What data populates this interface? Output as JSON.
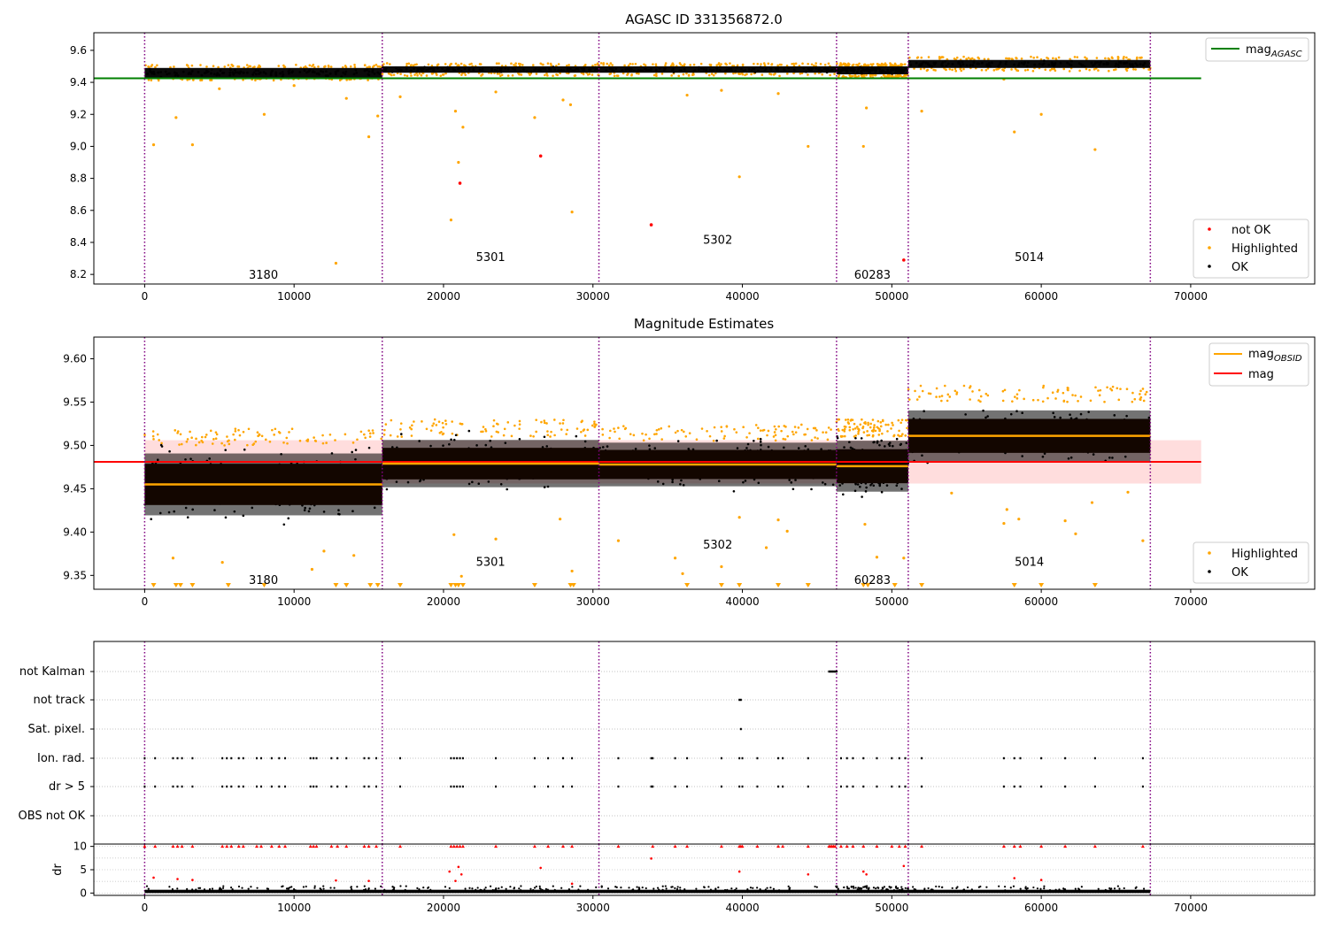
{
  "chart_data": [
    {
      "type": "scatter",
      "title": "AGASC ID 331356872.0",
      "xlim": [
        -3400,
        78300
      ],
      "ylim": [
        8.14,
        9.71
      ],
      "x_ticks": [
        0,
        10000,
        20000,
        30000,
        40000,
        50000,
        60000,
        70000
      ],
      "y_ticks": [
        8.2,
        8.4,
        8.6,
        8.8,
        9.0,
        9.2,
        9.4,
        9.6
      ],
      "y_tick_labels": [
        "8.2",
        "8.4",
        "8.6",
        "8.8",
        "9.0",
        "9.2",
        "9.4",
        "9.6"
      ],
      "obs_boundaries": [
        0,
        15900,
        30400,
        46300,
        51100,
        67300
      ],
      "obsids": [
        {
          "label": "3180",
          "x": 7950,
          "y": 8.2
        },
        {
          "label": "5301",
          "x": 23150,
          "y": 8.31
        },
        {
          "label": "5302",
          "x": 38350,
          "y": 8.42
        },
        {
          "label": "60283",
          "x": 48700,
          "y": 8.2
        },
        {
          "label": "5014",
          "x": 59200,
          "y": 8.31
        }
      ],
      "series_ok_bands": [
        {
          "x0": 0,
          "x1": 15900,
          "y0": 9.43,
          "y1": 9.49
        },
        {
          "x0": 15900,
          "x1": 30400,
          "y0": 9.46,
          "y1": 9.5
        },
        {
          "x0": 30400,
          "x1": 46300,
          "y0": 9.46,
          "y1": 9.5
        },
        {
          "x0": 46300,
          "x1": 51100,
          "y0": 9.45,
          "y1": 9.5
        },
        {
          "x0": 51100,
          "x1": 67300,
          "y0": 9.49,
          "y1": 9.54
        }
      ],
      "line_mag_agasc": {
        "name": "mag",
        "subscript": "AGASC",
        "y": 9.425,
        "x": [
          0,
          70700
        ],
        "color": "#008000"
      },
      "highlighted_points": [
        [
          600,
          9.01
        ],
        [
          2100,
          9.18
        ],
        [
          3200,
          9.01
        ],
        [
          8000,
          9.2
        ],
        [
          12800,
          8.27
        ],
        [
          15000,
          9.06
        ],
        [
          15600,
          9.19
        ],
        [
          20500,
          8.54
        ],
        [
          20800,
          9.22
        ],
        [
          21000,
          8.9
        ],
        [
          21300,
          9.12
        ],
        [
          26100,
          9.18
        ],
        [
          28000,
          9.29
        ],
        [
          28600,
          8.59
        ],
        [
          28500,
          9.26
        ],
        [
          39800,
          8.81
        ],
        [
          44400,
          9.0
        ],
        [
          48100,
          9.0
        ],
        [
          48300,
          9.24
        ],
        [
          52000,
          9.22
        ],
        [
          58200,
          9.09
        ],
        [
          60000,
          9.2
        ],
        [
          63600,
          8.98
        ],
        [
          5000,
          9.36
        ],
        [
          10000,
          9.38
        ],
        [
          13500,
          9.3
        ],
        [
          17100,
          9.31
        ],
        [
          23500,
          9.34
        ],
        [
          36300,
          9.32
        ],
        [
          38600,
          9.35
        ],
        [
          42400,
          9.33
        ],
        [
          57500,
          9.42
        ]
      ],
      "not_ok_points": [
        [
          21100,
          8.77
        ],
        [
          26500,
          8.94
        ],
        [
          33900,
          8.51
        ],
        [
          50800,
          8.29
        ]
      ],
      "legend_items": [
        "not OK",
        "Highlighted",
        "OK"
      ],
      "legend_placement": "lower-right",
      "legend_line_placement": "upper-right",
      "colors": {
        "ok": "#000000",
        "highlighted": "#ffa500",
        "not_ok": "#ff0000",
        "agasc": "#008000",
        "boundary": "#800080"
      }
    },
    {
      "type": "scatter",
      "title": "Magnitude Estimates",
      "xlim": [
        -3400,
        78300
      ],
      "ylim": [
        9.334,
        9.625
      ],
      "x_ticks": [
        0,
        10000,
        20000,
        30000,
        40000,
        50000,
        60000,
        70000
      ],
      "y_ticks": [
        9.35,
        9.4,
        9.45,
        9.5,
        9.55,
        9.6
      ],
      "y_tick_labels": [
        "9.35",
        "9.40",
        "9.45",
        "9.50",
        "9.55",
        "9.60"
      ],
      "obs_boundaries": [
        0,
        15900,
        30400,
        46300,
        51100,
        67300
      ],
      "obsids": [
        {
          "label": "3180",
          "x": 7950,
          "y": 9.345
        },
        {
          "label": "5301",
          "x": 23150,
          "y": 9.366
        },
        {
          "label": "5302",
          "x": 38350,
          "y": 9.386
        },
        {
          "label": "60283",
          "x": 48700,
          "y": 9.345
        },
        {
          "label": "5014",
          "x": 59200,
          "y": 9.366
        }
      ],
      "series_ok_bands": [
        {
          "x0": 0,
          "x1": 15900,
          "y0": 9.415,
          "y1": 9.5,
          "center": 9.455
        },
        {
          "x0": 15900,
          "x1": 30400,
          "y0": 9.445,
          "y1": 9.51,
          "center": 9.479
        },
        {
          "x0": 30400,
          "x1": 46300,
          "y0": 9.445,
          "y1": 9.505,
          "center": 9.478
        },
        {
          "x0": 46300,
          "x1": 51100,
          "y0": 9.44,
          "y1": 9.51,
          "center": 9.476
        },
        {
          "x0": 51100,
          "x1": 67300,
          "y0": 9.48,
          "y1": 9.55,
          "center": 9.511
        }
      ],
      "mag_obsid": {
        "name": "mag",
        "subscript": "OBSID",
        "values": [
          9.455,
          9.479,
          9.478,
          9.476,
          9.511
        ],
        "color": "#ffa500"
      },
      "mag": {
        "name": "mag",
        "y": 9.481,
        "x": [
          0,
          70700
        ],
        "band": [
          9.456,
          9.506
        ],
        "color": "#ff0000"
      },
      "highlighted_points": [
        [
          1900,
          9.37
        ],
        [
          5200,
          9.365
        ],
        [
          11200,
          9.357
        ],
        [
          12000,
          9.378
        ],
        [
          14000,
          9.373
        ],
        [
          20700,
          9.397
        ],
        [
          21200,
          9.349
        ],
        [
          23500,
          9.392
        ],
        [
          27800,
          9.415
        ],
        [
          28600,
          9.355
        ],
        [
          31700,
          9.39
        ],
        [
          35500,
          9.37
        ],
        [
          36000,
          9.352
        ],
        [
          38600,
          9.36
        ],
        [
          39800,
          9.417
        ],
        [
          41600,
          9.382
        ],
        [
          42400,
          9.414
        ],
        [
          43000,
          9.401
        ],
        [
          48200,
          9.409
        ],
        [
          49000,
          9.371
        ],
        [
          50800,
          9.37
        ],
        [
          54000,
          9.445
        ],
        [
          57500,
          9.41
        ],
        [
          57700,
          9.426
        ],
        [
          58500,
          9.415
        ],
        [
          61600,
          9.413
        ],
        [
          62300,
          9.398
        ],
        [
          63400,
          9.434
        ],
        [
          65800,
          9.446
        ],
        [
          66800,
          9.39
        ]
      ],
      "triangles_x": [
        600,
        2100,
        2400,
        3200,
        5600,
        8000,
        12800,
        13500,
        15100,
        15600,
        17100,
        20500,
        20800,
        21000,
        21300,
        26100,
        28500,
        28700,
        36300,
        38600,
        39800,
        42400,
        44400,
        48100,
        48400,
        50200,
        52000,
        58200,
        60000,
        63600
      ],
      "legend_items": [
        "Highlighted",
        "OK"
      ],
      "legend_placement": "lower-right",
      "legend_line_placement": "upper-right",
      "colors": {
        "ok": "#000000",
        "highlighted": "#ffa500",
        "band": "#2b0e00",
        "mag_band": "#ffcccc",
        "boundary": "#800080"
      }
    },
    {
      "type": "scatter",
      "title": "",
      "xlim": [
        -3400,
        78300
      ],
      "x_ticks": [
        0,
        10000,
        20000,
        30000,
        40000,
        50000,
        60000,
        70000
      ],
      "flags": [
        "not Kalman",
        "not track",
        "Sat. pixel.",
        "Ion. rad.",
        "dr > 5",
        "OBS not OK"
      ],
      "flag_points": {
        "not Kalman": [
          45800,
          45900,
          46000,
          46100,
          46200,
          46300
        ],
        "not track": [
          39800,
          39900
        ],
        "Sat. pixel.": [
          39900
        ],
        "Ion. rad.": [
          0,
          700,
          1900,
          2200,
          2500,
          3200,
          5200,
          5500,
          5800,
          6300,
          6600,
          7500,
          7800,
          8500,
          9000,
          9400,
          11100,
          11300,
          11500,
          12500,
          12900,
          13500,
          14700,
          15000,
          15500,
          17100,
          20500,
          20700,
          20900,
          21100,
          21300,
          23500,
          26100,
          27000,
          28000,
          28600,
          31700,
          33900,
          34000,
          35500,
          36300,
          38600,
          39800,
          40000,
          41000,
          42400,
          42700,
          44400,
          46600,
          47000,
          47400,
          48100,
          49000,
          50000,
          50500,
          50900,
          52000,
          57500,
          58200,
          58600,
          60000,
          61600,
          63600,
          66800
        ],
        "dr > 5": [
          0,
          700,
          1900,
          2200,
          2500,
          3200,
          5200,
          5500,
          5800,
          6300,
          6600,
          7500,
          7800,
          8500,
          9000,
          9400,
          11100,
          11300,
          11500,
          12500,
          12900,
          13500,
          14700,
          15000,
          15500,
          17100,
          20500,
          20700,
          20900,
          21100,
          21300,
          23500,
          26100,
          27000,
          28000,
          28600,
          31700,
          33900,
          34000,
          35500,
          36300,
          38600,
          39800,
          40000,
          41000,
          42400,
          42700,
          44400,
          46600,
          47000,
          47400,
          48100,
          49000,
          50000,
          50500,
          50900,
          52000,
          57500,
          58200,
          58600,
          60000,
          61600,
          63600,
          66800
        ],
        "OBS not OK": []
      },
      "obs_boundaries": [
        0,
        15900,
        30400,
        46300,
        51100,
        67300
      ]
    },
    {
      "type": "scatter",
      "title": "",
      "xlim": [
        -3400,
        78300
      ],
      "ylim": [
        -0.5,
        10.5
      ],
      "x_ticks": [
        0,
        10000,
        20000,
        30000,
        40000,
        50000,
        60000,
        70000
      ],
      "x_tick_labels": [
        "0",
        "10000",
        "20000",
        "30000",
        "40000",
        "50000",
        "60000",
        "70000"
      ],
      "y_ticks": [
        0,
        5,
        10
      ],
      "y_tick_labels": [
        "0",
        "5",
        "10"
      ],
      "ylabel": "dr",
      "clipped_x": [
        0,
        700,
        1900,
        2200,
        2500,
        3200,
        5200,
        5500,
        5800,
        6300,
        6600,
        7500,
        7800,
        8500,
        9000,
        9400,
        11100,
        11300,
        11500,
        12500,
        12900,
        13500,
        14700,
        15000,
        15500,
        17100,
        20500,
        20700,
        20900,
        21100,
        21300,
        23500,
        26100,
        27000,
        28000,
        28600,
        31700,
        34000,
        35500,
        36300,
        38600,
        39800,
        39900,
        40000,
        41000,
        42400,
        42700,
        44400,
        45800,
        45900,
        46000,
        46100,
        46200,
        46600,
        47000,
        47400,
        48100,
        49000,
        50000,
        50500,
        50900,
        52000,
        57500,
        58200,
        58600,
        60000,
        61600,
        63600,
        66800
      ],
      "mid_points": [
        [
          600,
          3.3
        ],
        [
          2200,
          3.0
        ],
        [
          3200,
          2.8
        ],
        [
          12800,
          2.7
        ],
        [
          15000,
          2.6
        ],
        [
          20400,
          4.6
        ],
        [
          20800,
          2.6
        ],
        [
          21000,
          5.6
        ],
        [
          21200,
          4.0
        ],
        [
          26500,
          5.4
        ],
        [
          28600,
          2.0
        ],
        [
          33900,
          7.4
        ],
        [
          39800,
          4.6
        ],
        [
          44400,
          4.0
        ],
        [
          48100,
          4.6
        ],
        [
          48300,
          4.0
        ],
        [
          50800,
          5.8
        ],
        [
          58200,
          3.2
        ],
        [
          60000,
          2.8
        ]
      ],
      "obs_boundaries": [
        0,
        15900,
        30400,
        46300,
        51100,
        67300
      ]
    }
  ]
}
